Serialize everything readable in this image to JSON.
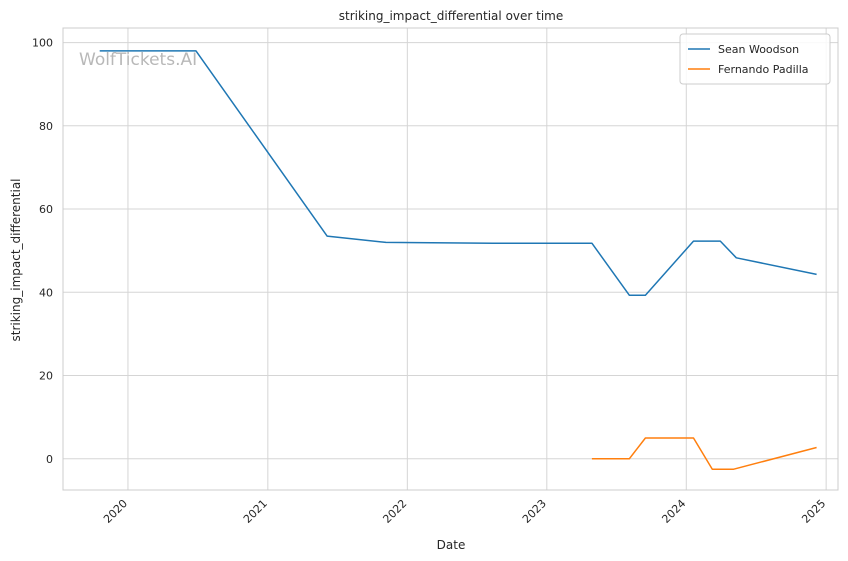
{
  "chart_data": {
    "type": "line",
    "title": "striking_impact_differential over time",
    "xlabel": "Date",
    "ylabel": "striking_impact_differential",
    "watermark": "WolfTickets.AI",
    "x_ticks": [
      "2020",
      "2021",
      "2022",
      "2023",
      "2024",
      "2025"
    ],
    "y_ticks": [
      0,
      20,
      40,
      60,
      80,
      100
    ],
    "xlim": [
      "2019-07-15",
      "2025-02-01"
    ],
    "ylim": [
      -7.5,
      103.5
    ],
    "grid": true,
    "legend_position": "top-right",
    "series": [
      {
        "name": "Sean Woodson",
        "color": "#1f77b4",
        "points": [
          {
            "x": "2019-10-19",
            "y": 98
          },
          {
            "x": "2020-06-27",
            "y": 98
          },
          {
            "x": "2021-06-05",
            "y": 53.5
          },
          {
            "x": "2021-11-06",
            "y": 52
          },
          {
            "x": "2022-08-13",
            "y": 51.8
          },
          {
            "x": "2023-04-29",
            "y": 51.8
          },
          {
            "x": "2023-08-05",
            "y": 39.3
          },
          {
            "x": "2023-09-16",
            "y": 39.3
          },
          {
            "x": "2024-01-20",
            "y": 52.3
          },
          {
            "x": "2024-03-30",
            "y": 52.3
          },
          {
            "x": "2024-05-11",
            "y": 48.3
          },
          {
            "x": "2024-12-07",
            "y": 44.3
          }
        ]
      },
      {
        "name": "Fernando Padilla",
        "color": "#ff7f0e",
        "points": [
          {
            "x": "2023-04-29",
            "y": 0
          },
          {
            "x": "2023-08-05",
            "y": 0
          },
          {
            "x": "2023-09-16",
            "y": 5
          },
          {
            "x": "2024-01-20",
            "y": 5
          },
          {
            "x": "2024-03-09",
            "y": -2.5
          },
          {
            "x": "2024-05-04",
            "y": -2.5
          },
          {
            "x": "2024-12-07",
            "y": 2.7
          }
        ]
      }
    ]
  }
}
